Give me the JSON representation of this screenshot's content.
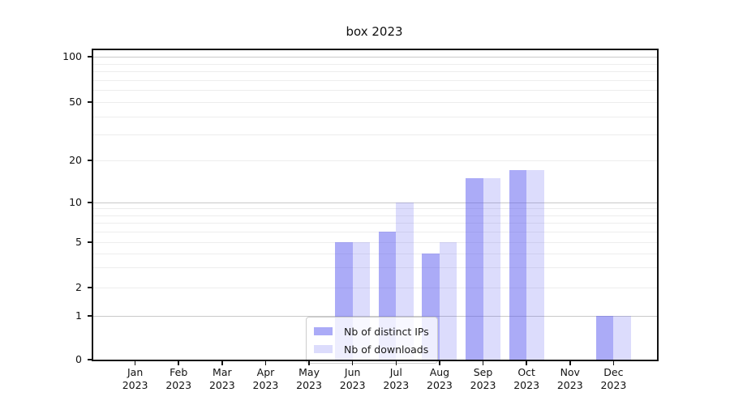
{
  "chart_data": {
    "type": "bar",
    "title": "box 2023",
    "categories": [
      "Jan",
      "Feb",
      "Mar",
      "Apr",
      "May",
      "Jun",
      "Jul",
      "Aug",
      "Sep",
      "Oct",
      "Nov",
      "Dec"
    ],
    "category_year": "2023",
    "series": [
      {
        "name": "Nb of distinct IPs",
        "color": "rgba(88,88,240,0.50)",
        "values": [
          0,
          0,
          0,
          0,
          0,
          5,
          6,
          4,
          15,
          17,
          0,
          1
        ]
      },
      {
        "name": "Nb of downloads",
        "color": "rgba(88,88,240,0.21)",
        "values": [
          0,
          0,
          0,
          0,
          0,
          5,
          10,
          5,
          15,
          17,
          0,
          1
        ]
      }
    ],
    "y_ticks": [
      0,
      1,
      2,
      5,
      10,
      20,
      50,
      100
    ],
    "y_minor_gridlines": [
      3,
      4,
      6,
      7,
      8,
      9,
      30,
      40,
      60,
      70,
      80,
      90
    ],
    "yscale": "symlog",
    "ylim": [
      0,
      100
    ],
    "xlabel": "",
    "ylabel": "",
    "grid": "both",
    "legend_position": "inside-lower-center",
    "colors": {
      "grid_major": "#c9c9c9",
      "grid_minor": "#ededed",
      "spine": "#111111",
      "text": "#1a1a1a"
    }
  }
}
